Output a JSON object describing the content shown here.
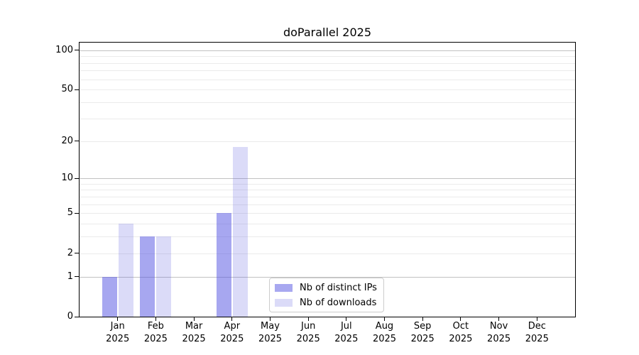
{
  "chart_data": {
    "type": "bar",
    "title": "doParallel 2025",
    "categories": [
      "Jan",
      "Feb",
      "Mar",
      "Apr",
      "May",
      "Jun",
      "Jul",
      "Aug",
      "Sep",
      "Oct",
      "Nov",
      "Dec"
    ],
    "category_year": "2025",
    "series": [
      {
        "name": "Nb of distinct IPs",
        "values": [
          1,
          3,
          0,
          5,
          0,
          0,
          0,
          0,
          0,
          0,
          0,
          0
        ],
        "fill": "rgba(80,80,225,0.5)",
        "legend_swatch": "#a8a8f0"
      },
      {
        "name": "Nb of downloads",
        "values": [
          4,
          3,
          0,
          18,
          0,
          0,
          0,
          0,
          0,
          0,
          0,
          0
        ],
        "fill": "rgba(75,75,220,0.2)",
        "legend_swatch": "#dbdbf8"
      }
    ],
    "yscale": "log1p",
    "ylim": [
      0,
      115
    ],
    "yticks": [
      0,
      1,
      2,
      5,
      10,
      20,
      50,
      100
    ],
    "grid_major_values": [
      1,
      10,
      100
    ],
    "grid_minor_values": [
      2,
      3,
      4,
      5,
      6,
      7,
      8,
      9,
      20,
      30,
      40,
      50,
      60,
      70,
      80,
      90
    ],
    "grid": true,
    "legend_position": "lower center-right inside plot",
    "colors": {
      "bar_distinct_ips": "#a8a8f0",
      "bar_downloads": "#dbdbf8",
      "grid_major": "#c2c2c2",
      "grid_minor": "#ebebeb",
      "axis": "#000000",
      "legend_border": "#cccccc",
      "background": "#ffffff"
    }
  }
}
